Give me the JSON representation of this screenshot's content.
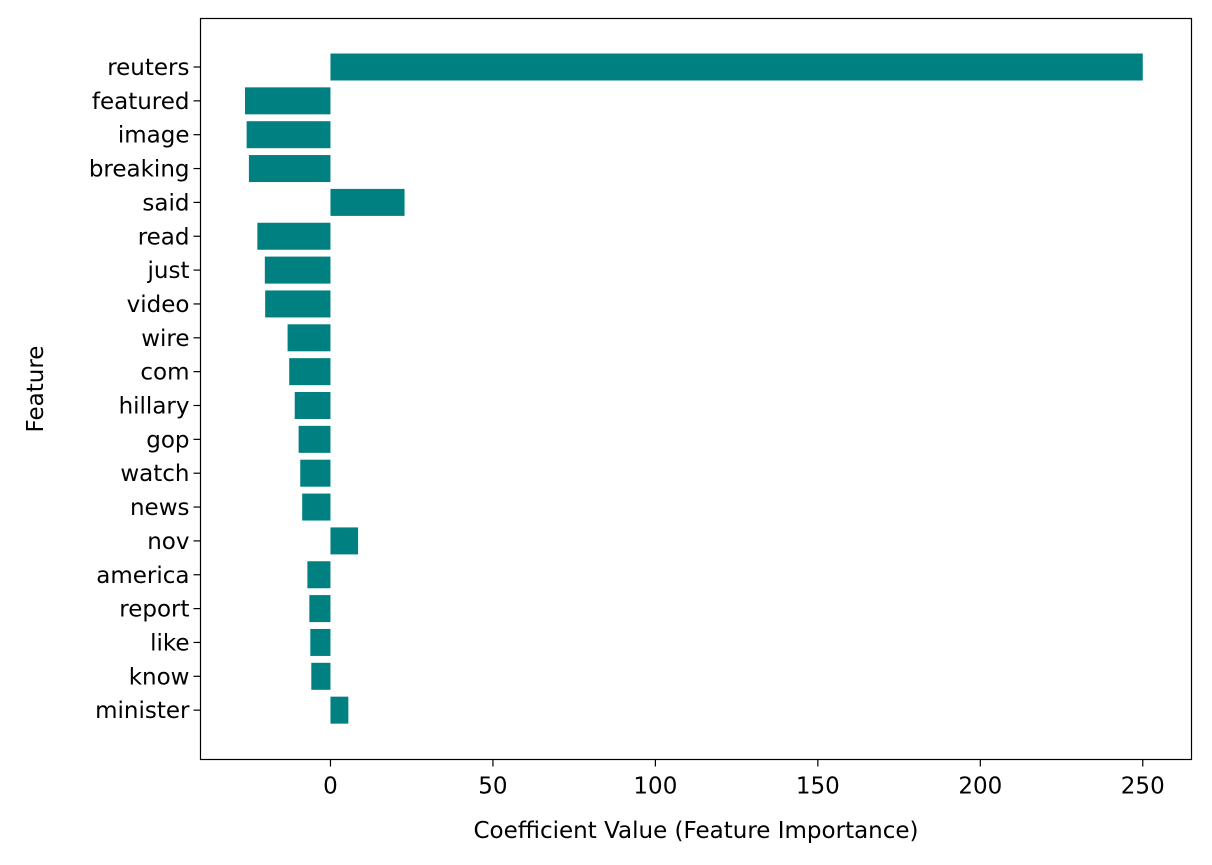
{
  "chart_data": {
    "type": "bar",
    "orientation": "horizontal",
    "title": "",
    "xlabel": "Coefficient Value (Feature Importance)",
    "ylabel": "Feature",
    "xlim": [
      -40,
      265
    ],
    "xticks": [
      0,
      50,
      100,
      150,
      200,
      250
    ],
    "grid": false,
    "bar_color": "#008080",
    "categories": [
      "reuters",
      "featured",
      "image",
      "breaking",
      "said",
      "read",
      "just",
      "video",
      "wire",
      "com",
      "hillary",
      "gop",
      "watch",
      "news",
      "nov",
      "america",
      "report",
      "like",
      "know",
      "minister"
    ],
    "values": [
      250,
      -26.3,
      -25.8,
      -25.1,
      22.8,
      -22.5,
      -20.2,
      -20.1,
      -13.2,
      -12.7,
      -11.0,
      -9.8,
      -9.3,
      -8.7,
      8.5,
      -7.1,
      -6.5,
      -6.2,
      -5.9,
      5.5
    ]
  }
}
